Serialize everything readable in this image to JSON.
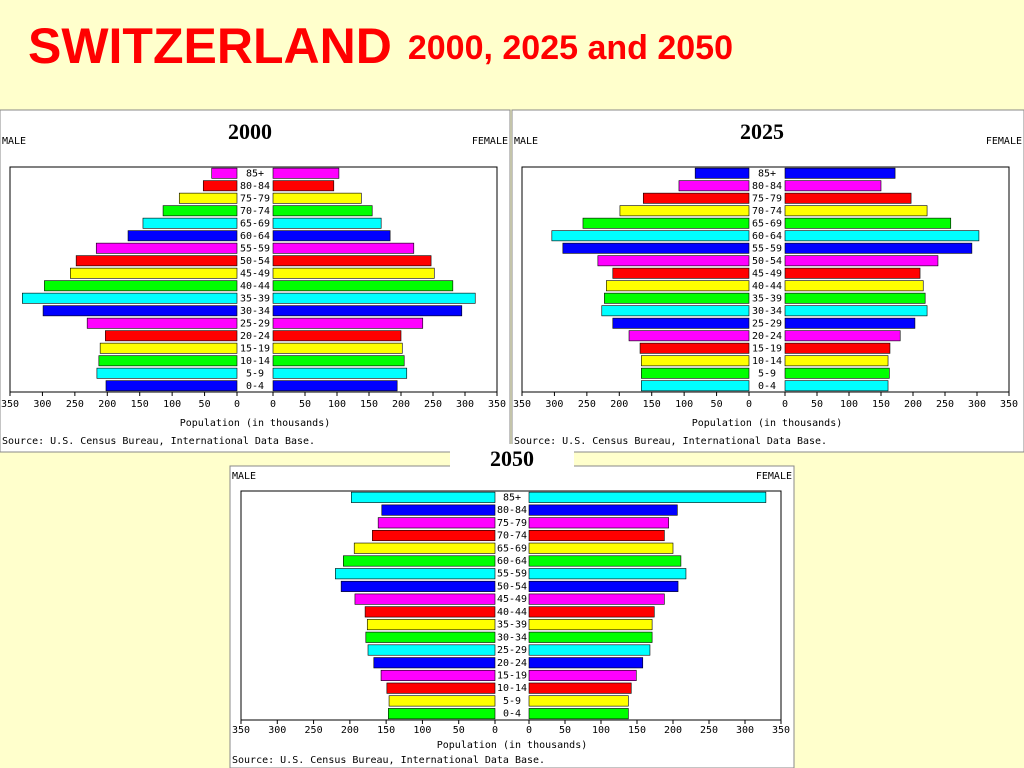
{
  "header": {
    "title": "SWITZERLAND",
    "subtitle": "2000, 2025 and 2050"
  },
  "chart_data": [
    {
      "type": "pyramid",
      "title": "2000",
      "categories": [
        "0-4",
        "5-9",
        "10-14",
        "15-19",
        "20-24",
        "25-29",
        "30-34",
        "35-39",
        "40-44",
        "45-49",
        "50-54",
        "55-59",
        "60-64",
        "65-69",
        "70-74",
        "75-79",
        "80-84",
        "85+"
      ],
      "series": [
        {
          "name": "MALE",
          "values": [
            202,
            216,
            213,
            211,
            203,
            231,
            299,
            331,
            297,
            257,
            248,
            217,
            168,
            145,
            114,
            89,
            52,
            39
          ]
        },
        {
          "name": "FEMALE",
          "values": [
            194,
            209,
            205,
            202,
            200,
            234,
            295,
            316,
            281,
            252,
            247,
            220,
            183,
            169,
            155,
            138,
            95,
            103
          ]
        }
      ],
      "colors": [
        "#0000ff",
        "#00ffff",
        "#00ff00",
        "#ffff00",
        "#ff0000",
        "#ff00ff",
        "#0000ff",
        "#00ffff",
        "#00ff00",
        "#ffff00",
        "#ff0000",
        "#ff00ff",
        "#0000ff",
        "#00ffff",
        "#00ff00",
        "#ffff00",
        "#ff0000",
        "#ff00ff"
      ],
      "xlim": [
        0,
        350
      ],
      "xticks": [
        0,
        50,
        100,
        150,
        200,
        250,
        300,
        350
      ],
      "xlabel": "Population (in thousands)",
      "source": "Source: U.S. Census Bureau, International Data Base."
    },
    {
      "type": "pyramid",
      "title": "2025",
      "categories": [
        "0-4",
        "5-9",
        "10-14",
        "15-19",
        "20-24",
        "25-29",
        "30-34",
        "35-39",
        "40-44",
        "45-49",
        "50-54",
        "55-59",
        "60-64",
        "65-69",
        "70-74",
        "75-79",
        "80-84",
        "85+"
      ],
      "series": [
        {
          "name": "MALE",
          "values": [
            166,
            166,
            166,
            168,
            185,
            210,
            227,
            223,
            220,
            210,
            233,
            287,
            304,
            256,
            199,
            163,
            108,
            83
          ]
        },
        {
          "name": "FEMALE",
          "values": [
            161,
            163,
            161,
            164,
            180,
            203,
            222,
            219,
            216,
            211,
            239,
            292,
            303,
            259,
            222,
            197,
            150,
            172
          ]
        }
      ],
      "colors": [
        "#00ffff",
        "#00ff00",
        "#ffff00",
        "#ff0000",
        "#ff00ff",
        "#0000ff",
        "#00ffff",
        "#00ff00",
        "#ffff00",
        "#ff0000",
        "#ff00ff",
        "#0000ff",
        "#00ffff",
        "#00ff00",
        "#ffff00",
        "#ff0000",
        "#ff00ff",
        "#0000ff"
      ],
      "xlim": [
        0,
        350
      ],
      "xticks": [
        0,
        50,
        100,
        150,
        200,
        250,
        300,
        350
      ],
      "xlabel": "Population (in thousands)",
      "source": "Source: U.S. Census Bureau, International Data Base."
    },
    {
      "type": "pyramid",
      "title": "2050",
      "categories": [
        "0-4",
        "5-9",
        "10-14",
        "15-19",
        "20-24",
        "25-29",
        "30-34",
        "35-39",
        "40-44",
        "45-49",
        "50-54",
        "55-59",
        "60-64",
        "65-69",
        "70-74",
        "75-79",
        "80-84",
        "85+"
      ],
      "series": [
        {
          "name": "MALE",
          "values": [
            147,
            146,
            149,
            157,
            167,
            175,
            178,
            176,
            179,
            193,
            212,
            220,
            209,
            194,
            169,
            161,
            156,
            198
          ]
        },
        {
          "name": "FEMALE",
          "values": [
            138,
            138,
            142,
            149,
            158,
            168,
            171,
            171,
            174,
            188,
            207,
            218,
            211,
            200,
            188,
            194,
            206,
            329
          ]
        }
      ],
      "colors": [
        "#00ff00",
        "#ffff00",
        "#ff0000",
        "#ff00ff",
        "#0000ff",
        "#00ffff",
        "#00ff00",
        "#ffff00",
        "#ff0000",
        "#ff00ff",
        "#0000ff",
        "#00ffff",
        "#00ff00",
        "#ffff00",
        "#ff0000",
        "#ff00ff",
        "#0000ff",
        "#00ffff"
      ],
      "xlim": [
        0,
        350
      ],
      "xticks": [
        0,
        50,
        100,
        150,
        200,
        250,
        300,
        350
      ],
      "xlabel": "Population (in thousands)",
      "source": "Source: U.S. Census Bureau, International Data Base."
    }
  ]
}
